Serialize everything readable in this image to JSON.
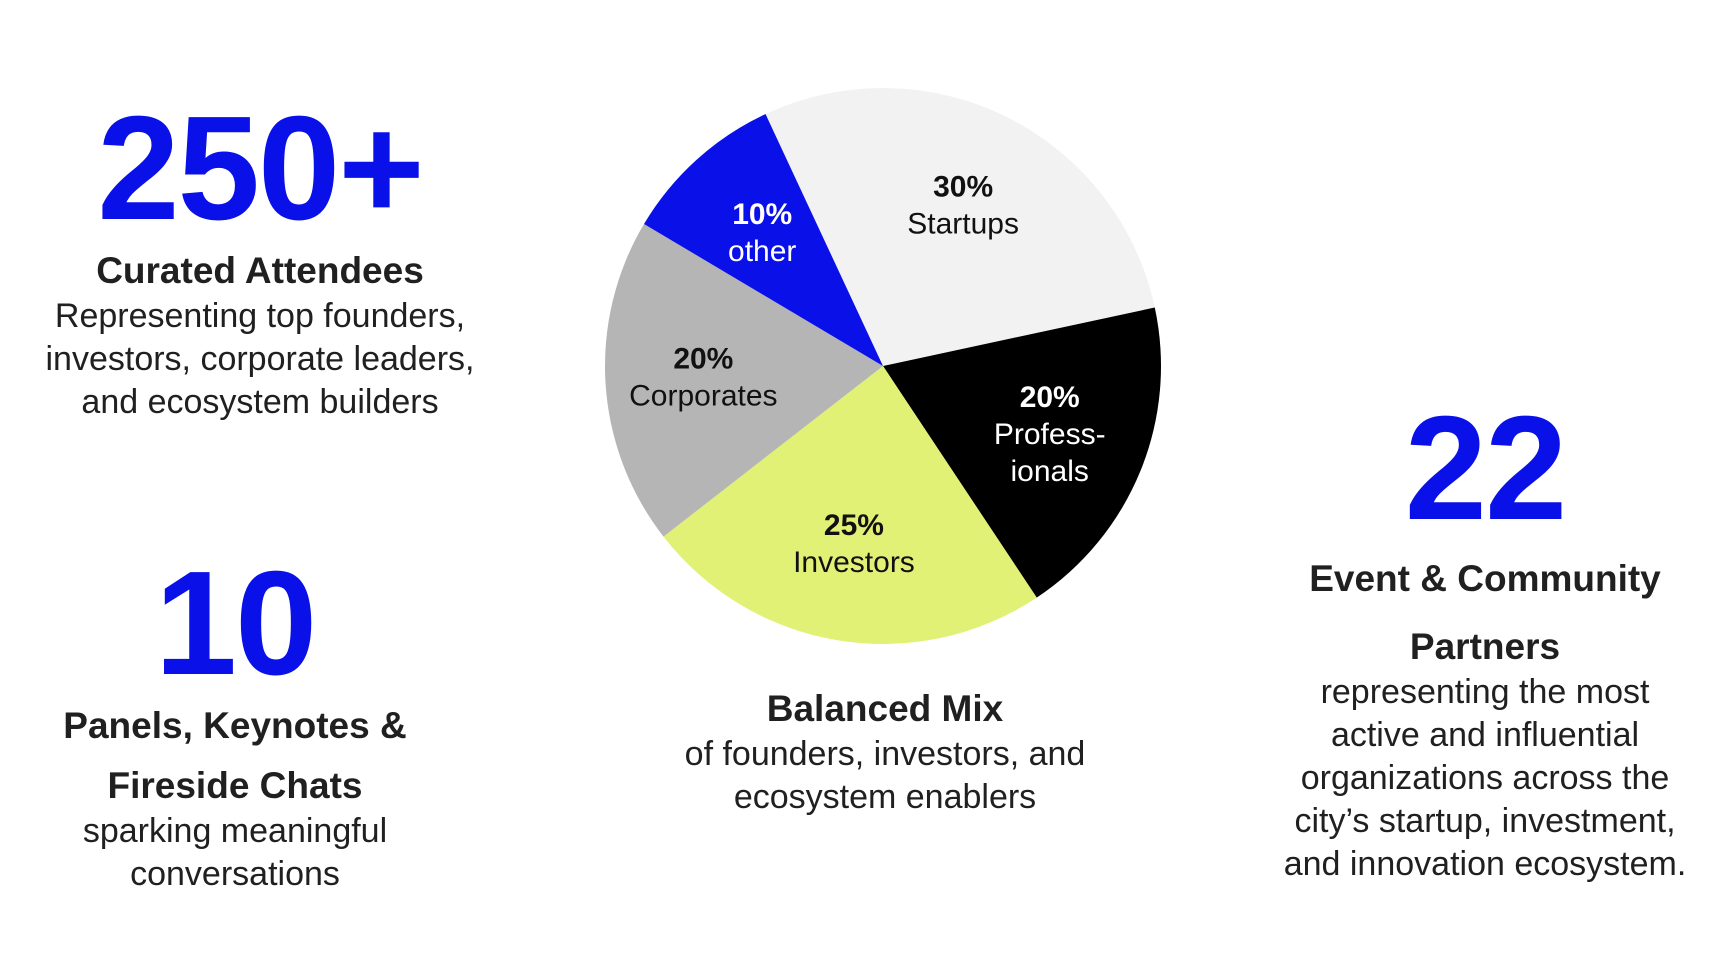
{
  "stats": {
    "attendees": {
      "number": "250+",
      "heading": "Curated Attendees",
      "description": [
        "Representing top founders,",
        "investors, corporate leaders,",
        "and ecosystem builders"
      ]
    },
    "panels": {
      "number": "10",
      "heading": [
        "Panels, Keynotes &",
        "Fireside Chats"
      ],
      "description": [
        "sparking meaningful",
        "conversations"
      ]
    },
    "partners": {
      "number": "22",
      "heading": [
        "Event & Community",
        "Partners"
      ],
      "description": [
        "representing the most",
        "active and influential",
        "organizations across the",
        "city’s startup, investment,",
        "and innovation ecosystem."
      ]
    }
  },
  "mix": {
    "heading": "Balanced Mix",
    "description": [
      "of founders, investors, and",
      "ecosystem enablers"
    ]
  },
  "chart_data": {
    "type": "pie",
    "title": "",
    "slices": [
      {
        "percent_label": "30%",
        "label": [
          "Startups"
        ],
        "value": 30,
        "color": "#f2f2f2",
        "text_color": "#111111"
      },
      {
        "percent_label": "20%",
        "label": [
          "Profess-",
          "ionals"
        ],
        "value": 20,
        "color": "#000000",
        "text_color": "#ffffff"
      },
      {
        "percent_label": "25%",
        "label": [
          "Investors"
        ],
        "value": 25,
        "color": "#e1f175",
        "text_color": "#111111"
      },
      {
        "percent_label": "20%",
        "label": [
          "Corporates"
        ],
        "value": 20,
        "color": "#b5b5b5",
        "text_color": "#111111"
      },
      {
        "percent_label": "10%",
        "label": [
          "other"
        ],
        "value": 10,
        "color": "#0a10e8",
        "text_color": "#ffffff"
      }
    ]
  }
}
